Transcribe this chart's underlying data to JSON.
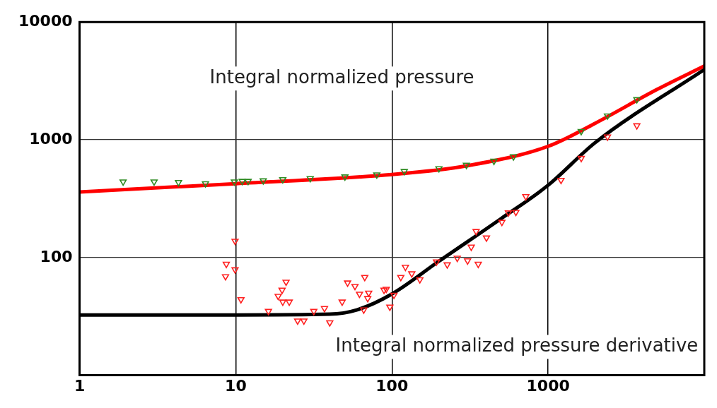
{
  "chart_data": {
    "type": "scatter",
    "log": "xy",
    "xlim": [
      1,
      10000
    ],
    "ylim": [
      10,
      10000
    ],
    "xticks": [
      1,
      10,
      100,
      1000
    ],
    "yticks": [
      100,
      1000,
      10000
    ],
    "grid": true,
    "legend": false,
    "annotations": [
      "Integral normalized pressure",
      "Integral normalized pressure derivative"
    ],
    "series": [
      {
        "marker": "triangle",
        "color": "#2e8b22",
        "x": [
          1.9,
          3.0,
          4.3,
          6.4,
          9.8,
          11,
          12,
          15,
          20,
          30,
          50,
          80,
          120,
          200,
          300,
          450,
          600,
          1630,
          2400,
          3700
        ],
        "values": [
          440,
          440,
          435,
          425,
          440,
          445,
          445,
          450,
          460,
          470,
          485,
          505,
          540,
          570,
          610,
          660,
          720,
          1180,
          1600,
          2200
        ]
      },
      {
        "marker": "triangle",
        "color": "#ff2020",
        "x": [
          9.9,
          8.7,
          8.6,
          9.9,
          10.8,
          16.2,
          18.7,
          19.8,
          21,
          20,
          22,
          24.9,
          27.3,
          31.6,
          37,
          40,
          48,
          52,
          58,
          67,
          62,
          71,
          66,
          70,
          89,
          97,
          92,
          103,
          122,
          114,
          134,
          151,
          193,
          226,
          262,
          305,
          357,
          322,
          403,
          346,
          506,
          557,
          622,
          720,
          1210,
          1630,
          2400,
          3700
        ],
        "values": [
          138,
          88,
          69,
          79,
          44,
          35,
          47,
          53,
          62,
          42,
          42,
          29,
          29,
          35,
          37,
          28,
          42,
          61,
          57,
          68,
          49,
          50,
          36,
          45,
          53,
          38,
          54,
          48,
          83,
          68,
          73,
          65,
          92,
          87,
          99,
          94,
          88,
          123,
          147,
          167,
          200,
          240,
          243,
          330,
          454,
          697,
          1060,
          1320
        ]
      },
      {
        "type": "line",
        "marker": "none",
        "color": "#ff0000",
        "x": [
          1,
          10,
          100,
          300,
          1000,
          2000,
          5000,
          10000
        ],
        "values": [
          360,
          424,
          507,
          600,
          880,
          1380,
          2680,
          4230
        ]
      },
      {
        "type": "line",
        "marker": "none",
        "color": "#000000",
        "x": [
          1,
          10,
          40,
          60,
          100,
          200,
          500,
          1000,
          2000,
          10000
        ],
        "values": [
          32.5,
          32.5,
          33,
          36,
          49,
          93,
          214,
          411,
          945,
          3950
        ]
      }
    ]
  }
}
